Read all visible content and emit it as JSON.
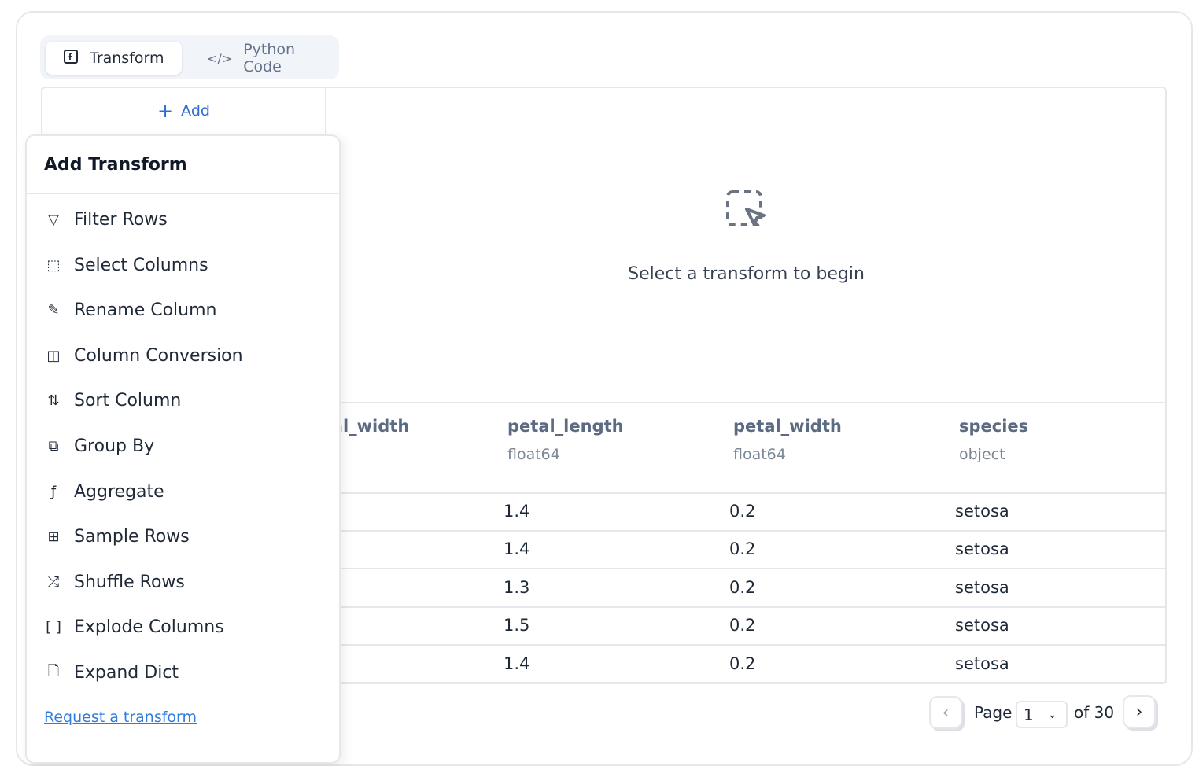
{
  "tabs": [
    {
      "label": "Transform",
      "icon": "function-square-icon",
      "active": true
    },
    {
      "label": "Python Code",
      "icon": "code-icon",
      "active": false
    }
  ],
  "add_button": {
    "label": "Add"
  },
  "empty_state": {
    "message": "Select a transform to begin",
    "icon": "dashed-cursor-icon"
  },
  "table": {
    "columns": [
      {
        "name": "sepal_width",
        "type": ""
      },
      {
        "name": "petal_length",
        "type": "float64"
      },
      {
        "name": "petal_width",
        "type": "float64"
      },
      {
        "name": "species",
        "type": "object"
      }
    ],
    "rows": [
      [
        "1.4",
        "0.2",
        "setosa"
      ],
      [
        "1.4",
        "0.2",
        "setosa"
      ],
      [
        "1.3",
        "0.2",
        "setosa"
      ],
      [
        "1.5",
        "0.2",
        "setosa"
      ],
      [
        "1.4",
        "0.2",
        "setosa"
      ]
    ]
  },
  "popover": {
    "title": "Add Transform",
    "items": [
      {
        "label": "Filter Rows",
        "icon": "filter-icon"
      },
      {
        "label": "Select Columns",
        "icon": "select-columns-icon"
      },
      {
        "label": "Rename Column",
        "icon": "pencil-icon"
      },
      {
        "label": "Column Conversion",
        "icon": "columns-icon"
      },
      {
        "label": "Sort Column",
        "icon": "sort-arrows-icon"
      },
      {
        "label": "Group By",
        "icon": "group-icon"
      },
      {
        "label": "Aggregate",
        "icon": "function-square-icon"
      },
      {
        "label": "Sample Rows",
        "icon": "sample-icon"
      },
      {
        "label": "Shuffle Rows",
        "icon": "shuffle-icon"
      },
      {
        "label": "Explode Columns",
        "icon": "brackets-icon"
      },
      {
        "label": "Expand Dict",
        "icon": "file-braces-icon"
      }
    ],
    "request_link": "Request a transform"
  },
  "pagination": {
    "page_label": "Page",
    "current_page": "1",
    "of_label": "of 30"
  },
  "colors": {
    "accent": "#2f6ad0",
    "link": "#2f7be0"
  }
}
